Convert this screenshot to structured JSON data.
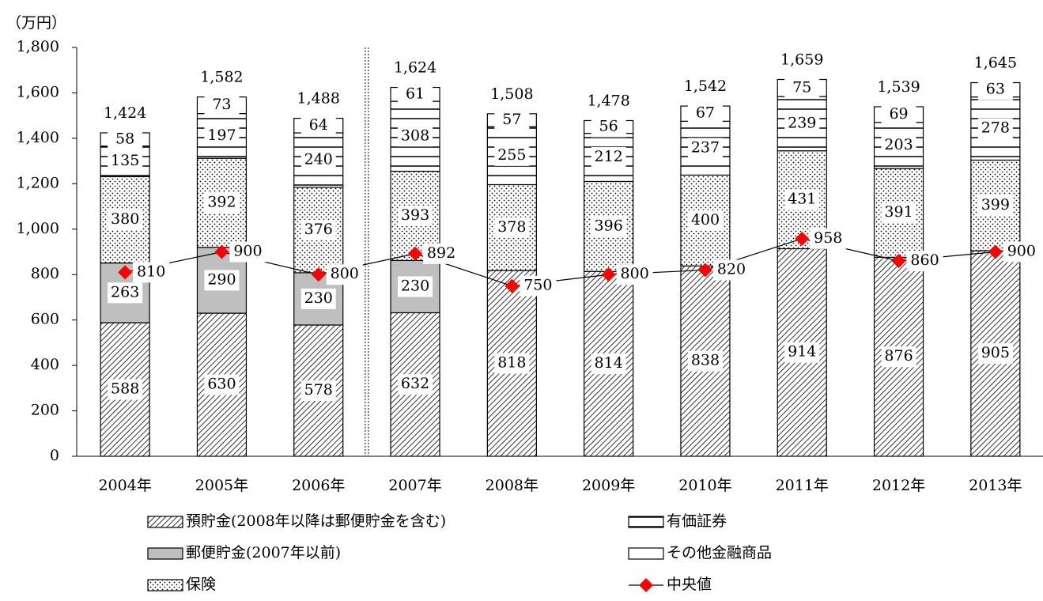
{
  "chart_data": {
    "type": "stacked-bar-line",
    "y_unit": "（万円）",
    "categories": [
      "2004年",
      "2005年",
      "2006年",
      "2007年",
      "2008年",
      "2009年",
      "2010年",
      "2011年",
      "2012年",
      "2013年"
    ],
    "series": [
      {
        "name": "預貯金(2008年以降は郵便貯金を含む)",
        "color": "#000000",
        "pattern": "diagonal",
        "values": [
          588,
          630,
          578,
          632,
          818,
          814,
          838,
          914,
          876,
          905
        ]
      },
      {
        "name": "郵便貯金(2007年以前)",
        "color": "#bfbfbf",
        "pattern": "solid",
        "values": [
          263,
          290,
          230,
          230,
          null,
          null,
          null,
          null,
          null,
          null
        ]
      },
      {
        "name": "保険",
        "color": "#000000",
        "pattern": "dots",
        "values": [
          380,
          392,
          376,
          393,
          378,
          396,
          400,
          431,
          391,
          399
        ]
      },
      {
        "name": "有価証券",
        "color": "#000000",
        "pattern": "horizontal",
        "values": [
          135,
          197,
          240,
          308,
          255,
          212,
          237,
          239,
          203,
          278
        ]
      },
      {
        "name": "その他金融商品",
        "color": "#ffffff",
        "pattern": "solid",
        "values": [
          58,
          73,
          64,
          61,
          57,
          56,
          67,
          75,
          69,
          63
        ]
      },
      {
        "name": "中央値",
        "color": "#ff0000",
        "type": "line",
        "values": [
          810,
          900,
          800,
          892,
          750,
          800,
          820,
          958,
          860,
          900
        ]
      }
    ],
    "totals": {
      "values": [
        1424,
        1582,
        1488,
        1624,
        1508,
        1478,
        1542,
        1659,
        1539,
        1645
      ],
      "value_labels": [
        "1,424",
        "1,582",
        "1,488",
        "1,624",
        "1,508",
        "1,478",
        "1,542",
        "1,659",
        "1,539",
        "1,645"
      ]
    },
    "ylim": [
      0,
      1800
    ],
    "yticks": [
      0,
      200,
      400,
      600,
      800,
      {
        "value": 1000,
        "label": "1,000"
      },
      {
        "value": 1200,
        "label": "1,200"
      },
      {
        "value": 1400,
        "label": "1,400"
      },
      {
        "value": 1600,
        "label": "1,600"
      },
      {
        "value": 1800,
        "label": "1,800"
      }
    ]
  }
}
